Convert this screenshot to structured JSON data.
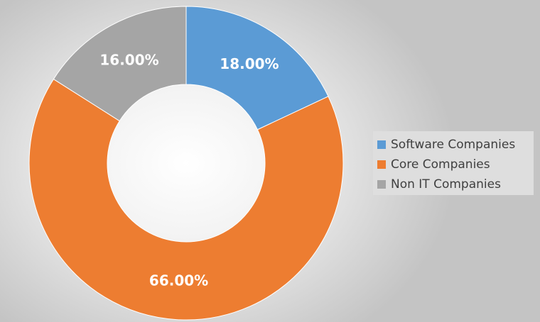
{
  "chart_data": {
    "type": "pie",
    "variant": "donut",
    "categories": [
      "Software Companies",
      "Core Companies",
      "Non IT Companies"
    ],
    "values": [
      18.0,
      66.0,
      16.0
    ],
    "labels": [
      "18.00%",
      "66.00%",
      "16.00%"
    ],
    "colors": [
      "#5b9bd5",
      "#ed7d31",
      "#a5a5a5"
    ],
    "legend": "right",
    "title": ""
  }
}
